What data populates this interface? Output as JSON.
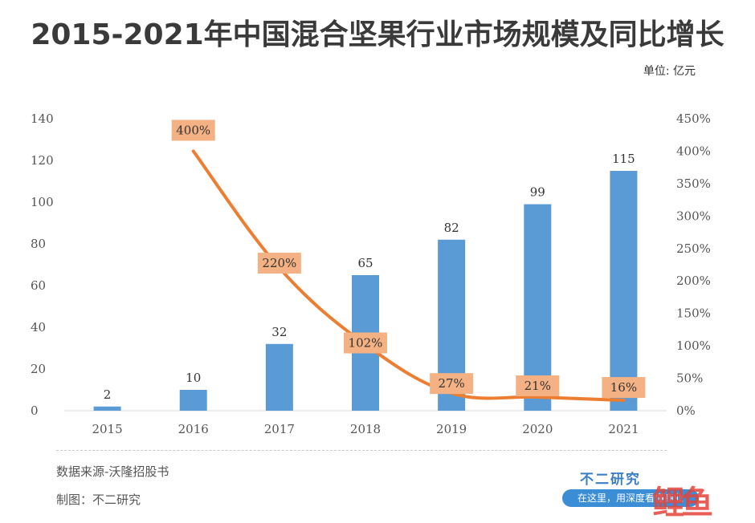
{
  "page": {
    "unit_label": "单位: 亿元",
    "source": "数据来源-沃隆招股书",
    "maker": "制图：不二研究",
    "brand": "不二研究",
    "slogan": "在这里，用深度看懂商业",
    "watermark_logo": "鲤鱼"
  },
  "chart_data": {
    "type": "bar",
    "title": "2015-2021年中国混合坚果行业市场规模及同比增长",
    "categories": [
      "2015",
      "2016",
      "2017",
      "2018",
      "2019",
      "2020",
      "2021"
    ],
    "series": [
      {
        "name": "",
        "type": "bar",
        "axis": "left",
        "values": [
          2,
          10,
          32,
          65,
          82,
          99,
          115
        ],
        "color": "#5b9bd5"
      },
      {
        "name": "",
        "type": "line",
        "axis": "right",
        "values": [
          null,
          400,
          220,
          102,
          27,
          21,
          16
        ],
        "color": "#ed7d31"
      }
    ],
    "left_axis": {
      "ylim": [
        0,
        140
      ],
      "ticks": [
        0,
        20,
        40,
        60,
        80,
        100,
        120,
        140
      ]
    },
    "right_axis": {
      "ylim": [
        0,
        450
      ],
      "ticks": [
        "0%",
        "50%",
        "100%",
        "150%",
        "200%",
        "250%",
        "300%",
        "350%",
        "400%",
        "450%"
      ]
    },
    "value_labels": [
      "2",
      "10",
      "32",
      "65",
      "82",
      "99",
      "115"
    ],
    "growth_labels": [
      "",
      "400%",
      "220%",
      "102%",
      "27%",
      "21%",
      "16%"
    ],
    "grid": false,
    "label_box_color": "#f4b183"
  }
}
